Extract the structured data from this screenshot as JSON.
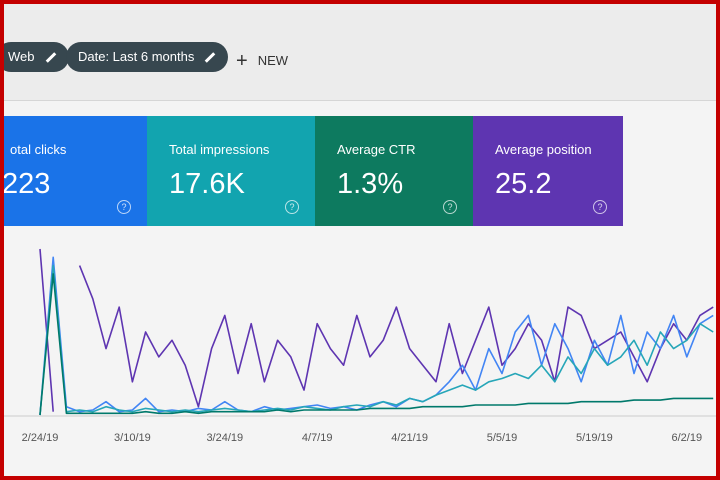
{
  "toolbar": {
    "chips": [
      "Web",
      "Date: Last 6 months"
    ],
    "new_button": "NEW"
  },
  "cards": [
    {
      "label": "otal clicks",
      "value": "223"
    },
    {
      "label": "Total impressions",
      "value": "17.6K"
    },
    {
      "label": "Average CTR",
      "value": "1.3%"
    },
    {
      "label": "Average position",
      "value": "25.2"
    }
  ],
  "chart_data": {
    "type": "line",
    "categories": [
      "2/24/19",
      null,
      null,
      null,
      null,
      null,
      null,
      "3/10/19",
      null,
      null,
      null,
      null,
      null,
      null,
      "3/24/19",
      null,
      null,
      null,
      null,
      null,
      null,
      "4/7/19",
      null,
      null,
      null,
      null,
      null,
      null,
      "4/21/19",
      null,
      null,
      null,
      null,
      null,
      null,
      "5/5/19",
      null,
      null,
      null,
      null,
      null,
      null,
      "5/19/19",
      null,
      null,
      null,
      null,
      null,
      null,
      "6/2/19",
      null,
      null
    ],
    "ylim": [
      0,
      100
    ],
    "series": [
      {
        "name": "Total impressions",
        "color": "#5e35b1",
        "values": [
          100,
          2,
          null,
          90,
          70,
          40,
          65,
          20,
          50,
          35,
          45,
          30,
          5,
          40,
          60,
          25,
          55,
          20,
          45,
          35,
          15,
          55,
          40,
          30,
          60,
          35,
          45,
          65,
          40,
          30,
          20,
          55,
          25,
          45,
          65,
          30,
          40,
          55,
          45,
          20,
          65,
          60,
          40,
          45,
          50,
          35,
          20,
          40,
          55,
          45,
          60,
          65
        ]
      },
      {
        "name": "Total clicks",
        "color": "#4285f4",
        "values": [
          0,
          95,
          5,
          2,
          3,
          8,
          2,
          3,
          10,
          2,
          3,
          2,
          4,
          3,
          8,
          3,
          2,
          5,
          3,
          4,
          5,
          6,
          4,
          5,
          3,
          6,
          8,
          5,
          10,
          8,
          12,
          20,
          30,
          15,
          40,
          25,
          50,
          60,
          30,
          55,
          40,
          20,
          45,
          30,
          60,
          25,
          50,
          40,
          60,
          35,
          55,
          60
        ]
      },
      {
        "name": "Average CTR",
        "color": "#26a6b8",
        "values": [
          0,
          90,
          2,
          3,
          2,
          5,
          3,
          2,
          4,
          3,
          2,
          3,
          2,
          3,
          4,
          3,
          2,
          3,
          4,
          3,
          5,
          4,
          3,
          5,
          6,
          5,
          8,
          6,
          10,
          8,
          12,
          15,
          18,
          15,
          20,
          22,
          25,
          22,
          30,
          20,
          35,
          25,
          40,
          30,
          35,
          45,
          30,
          50,
          40,
          45,
          55,
          50
        ]
      },
      {
        "name": "Average position",
        "color": "#00796b",
        "values": [
          0,
          85,
          1,
          1,
          1,
          1,
          1,
          1,
          2,
          1,
          1,
          2,
          1,
          2,
          2,
          2,
          2,
          2,
          3,
          2,
          3,
          3,
          3,
          3,
          3,
          4,
          4,
          4,
          4,
          5,
          5,
          5,
          5,
          6,
          6,
          6,
          6,
          7,
          7,
          7,
          7,
          8,
          8,
          8,
          8,
          9,
          9,
          9,
          10,
          10,
          10,
          10
        ]
      }
    ]
  }
}
